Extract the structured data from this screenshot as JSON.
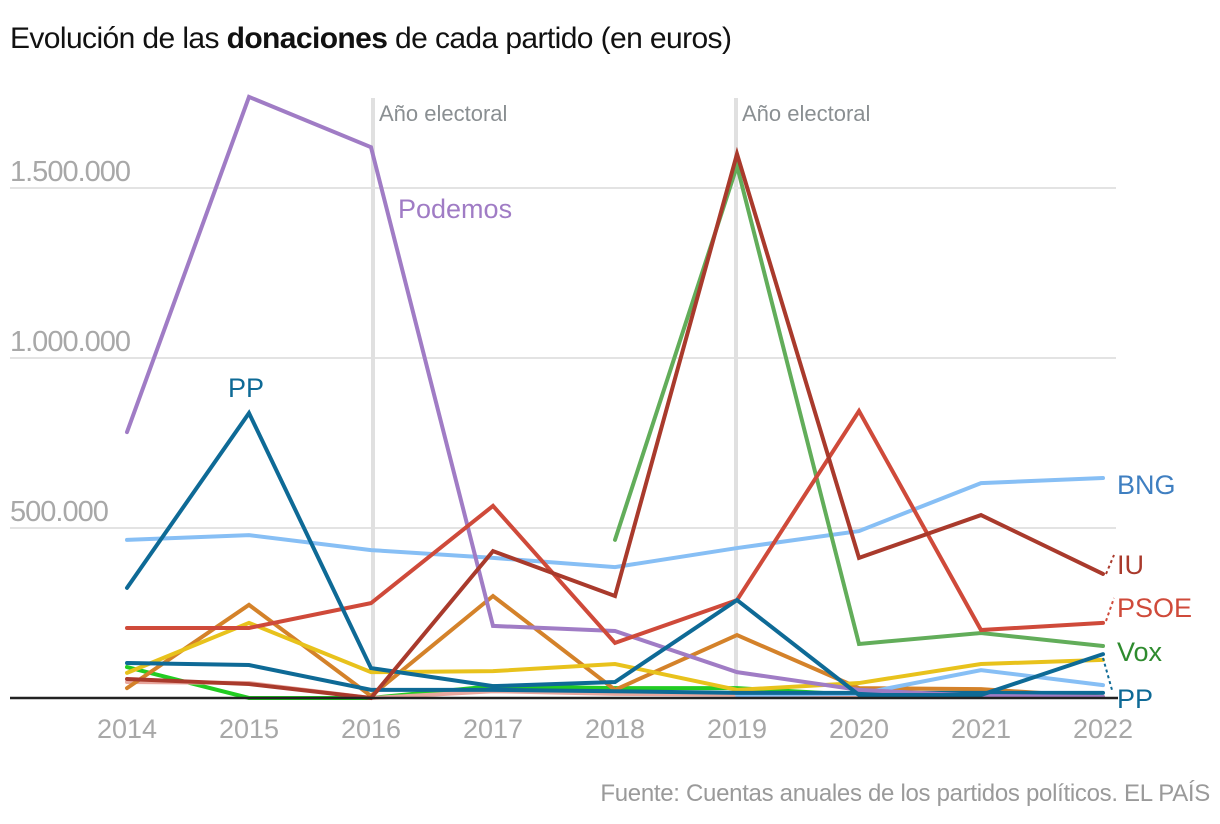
{
  "title": {
    "prefix": "Evolución de las ",
    "bold": "donaciones",
    "suffix": " de cada partido (en euros)"
  },
  "source": "Fuente: Cuentas anuales de los partidos políticos. EL PAÍS",
  "chart_data": {
    "type": "line",
    "title": "Evolución de las donaciones de cada partido (en euros)",
    "xlabel": "",
    "ylabel": "",
    "x": [
      2014,
      2015,
      2016,
      2017,
      2018,
      2019,
      2020,
      2021,
      2022
    ],
    "x_tick_labels": [
      "2014",
      "2015",
      "2016",
      "2017",
      "2018",
      "2019",
      "2020",
      "2021",
      "2022"
    ],
    "ylim": [
      0,
      1800000
    ],
    "y_ticks": [
      500000,
      1000000,
      1500000
    ],
    "y_tick_labels": [
      "500.000",
      "1.000.000",
      "1.500.000"
    ],
    "grid": true,
    "legend": "direct labels at right end of lines",
    "annotations": [
      {
        "x": 2016,
        "text": "Año electoral"
      },
      {
        "x": 2019,
        "text": "Año electoral"
      }
    ],
    "series": [
      {
        "name": "Otro (verde claro)",
        "label": "",
        "color": "#22cc22",
        "values": [
          91000,
          0,
          0,
          35000,
          29000,
          29000,
          9000,
          null,
          null
        ]
      },
      {
        "name": "Otro (rojo pálido)",
        "label": "",
        "color": "#e8a79e",
        "values": [
          47000,
          44000,
          0,
          20000,
          12000,
          10000,
          3000,
          3000,
          3000
        ]
      },
      {
        "name": "Otro (naranja)",
        "label": "",
        "color": "#d4822a",
        "values": [
          29000,
          274000,
          6000,
          300000,
          24000,
          185000,
          29000,
          26000,
          3000
        ]
      },
      {
        "name": "Otro (amarillo)",
        "label": "",
        "color": "#e8c21c",
        "values": [
          74000,
          221000,
          76000,
          79000,
          100000,
          24000,
          44000,
          100000,
          112000
        ]
      },
      {
        "name": "Otro (azul claro)",
        "label": "",
        "color": "#87bff5",
        "values": [
          null,
          null,
          null,
          null,
          null,
          9000,
          12000,
          82000,
          38000
        ]
      },
      {
        "name": "Otro (azul)",
        "label": "",
        "color": "#0e6a96",
        "values": [
          103000,
          97000,
          24000,
          24000,
          20000,
          15000,
          15000,
          15000,
          15000
        ]
      },
      {
        "name": "BNG",
        "label": "BNG",
        "color": "#87bff5",
        "label_color": "#3f7fc1",
        "values": [
          465000,
          479000,
          435000,
          412000,
          385000,
          441000,
          491000,
          632000,
          647000
        ]
      },
      {
        "name": "Podemos",
        "label": "Podemos",
        "color": "#a07cc5",
        "values": [
          782000,
          1768000,
          1620000,
          212000,
          197000,
          76000,
          24000,
          6000,
          3000
        ]
      },
      {
        "name": "Vox",
        "label": "Vox",
        "color": "#62ad5a",
        "label_color": "#2e8b2e",
        "values": [
          null,
          null,
          null,
          null,
          465000,
          1565000,
          159000,
          191000,
          153000
        ]
      },
      {
        "name": "PSOE",
        "label": "PSOE",
        "color": "#cf4a3a",
        "values": [
          206000,
          206000,
          279000,
          565000,
          162000,
          288000,
          844000,
          200000,
          221000
        ]
      },
      {
        "name": "PP",
        "label": "PP",
        "color": "#0e6a96",
        "values": [
          324000,
          838000,
          88000,
          35000,
          47000,
          288000,
          9000,
          9000,
          129000
        ]
      },
      {
        "name": "IU",
        "label": "IU",
        "color": "#a93a2c",
        "values": [
          56000,
          41000,
          0,
          432000,
          300000,
          1600000,
          412000,
          538000,
          365000
        ]
      }
    ]
  }
}
